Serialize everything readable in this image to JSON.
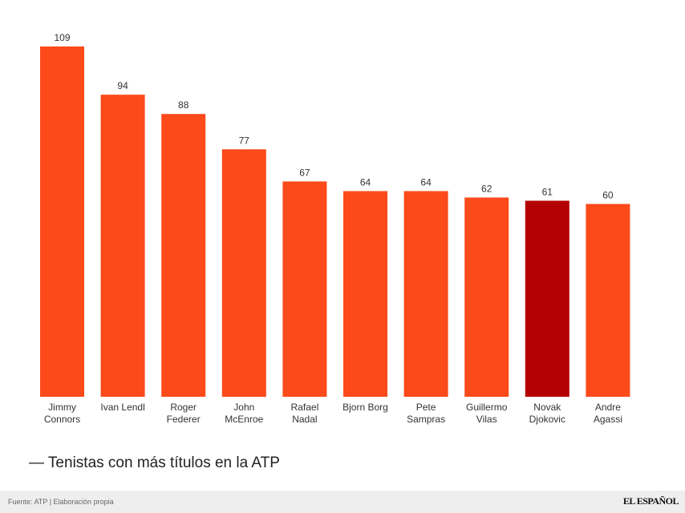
{
  "chart_data": {
    "type": "bar",
    "title": "— Tenistas con más títulos en la ATP",
    "categories": [
      [
        "Jimmy",
        "Connors"
      ],
      [
        "Ivan Lendl"
      ],
      [
        "Roger",
        "Federer"
      ],
      [
        "John",
        "McEnroe"
      ],
      [
        "Rafael",
        "Nadal"
      ],
      [
        "Bjorn Borg"
      ],
      [
        "Pete",
        "Sampras"
      ],
      [
        "Guillermo",
        "Vilas"
      ],
      [
        "Novak",
        "Djokovic"
      ],
      [
        "Andre",
        "Agassi"
      ]
    ],
    "values": [
      109,
      94,
      88,
      77,
      67,
      64,
      64,
      62,
      61,
      60
    ],
    "highlight_index": 8,
    "ylim": [
      0,
      109
    ],
    "xlabel": "",
    "ylabel": "",
    "colors": {
      "bar": "#fc4a1a",
      "highlight": "#b30000",
      "label": "#333333"
    }
  },
  "footer": {
    "source": "Fuente: ATP | Elaboración propia",
    "brand": "EL ESPAÑOL"
  }
}
